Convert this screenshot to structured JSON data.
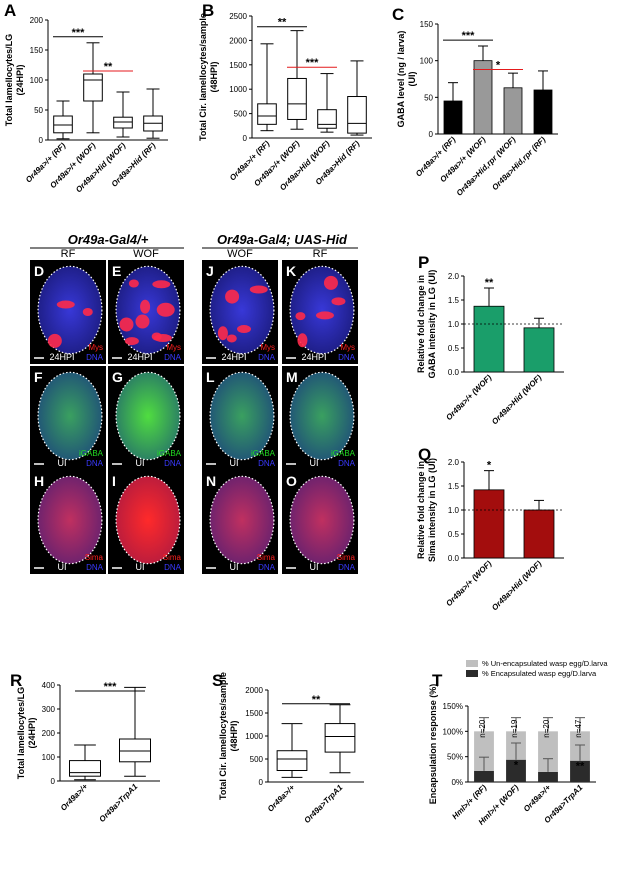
{
  "chart_data": [
    {
      "id": "A",
      "panel_label": "A",
      "type": "box",
      "ylabel": [
        "Total lamellocytes/LG",
        "(24HPI)"
      ],
      "ylim": [
        0,
        200
      ],
      "yticks": [
        0,
        50,
        100,
        150,
        200
      ],
      "categories": [
        "Or49a>/+ (RF)",
        "Or49a>/+ (WOF)",
        "Or49a>Hid (WOF)",
        "Or49a>Hid (RF)"
      ],
      "boxes": [
        {
          "min": 2,
          "q1": 12,
          "median": 25,
          "q3": 40,
          "max": 65
        },
        {
          "min": 12,
          "q1": 65,
          "median": 100,
          "q3": 110,
          "max": 162
        },
        {
          "min": 5,
          "q1": 20,
          "median": 30,
          "q3": 38,
          "max": 80
        },
        {
          "min": 3,
          "q1": 15,
          "median": 28,
          "q3": 40,
          "max": 85
        }
      ],
      "significance": [
        {
          "from": 0,
          "to": 1,
          "label": "***",
          "y": 172,
          "color": "#000000"
        },
        {
          "from": 1,
          "to": 2,
          "label": "**",
          "y": 115,
          "color": "#e41a1c"
        }
      ]
    },
    {
      "id": "B",
      "panel_label": "B",
      "type": "box",
      "ylabel": [
        "Total Cir. lamellocytes/sample",
        "(48HPI)"
      ],
      "ylim": [
        0,
        2500
      ],
      "yticks": [
        0,
        500,
        1000,
        1500,
        2000,
        2500
      ],
      "categories": [
        "Or49a>/+ (RF)",
        "Or49a>/+ (WOF)",
        "Or49a>Hid (WOF)",
        "Or49a>Hid (RF)"
      ],
      "boxes": [
        {
          "min": 150,
          "q1": 280,
          "median": 450,
          "q3": 700,
          "max": 1930
        },
        {
          "min": 180,
          "q1": 380,
          "median": 700,
          "q3": 1220,
          "max": 2200
        },
        {
          "min": 120,
          "q1": 200,
          "median": 280,
          "q3": 580,
          "max": 1320
        },
        {
          "min": 60,
          "q1": 100,
          "median": 300,
          "q3": 850,
          "max": 1580
        }
      ],
      "significance": [
        {
          "from": 0,
          "to": 1,
          "label": "**",
          "y": 2280,
          "color": "#000000"
        },
        {
          "from": 1,
          "to": 2,
          "label": "***",
          "y": 1450,
          "color": "#e41a1c"
        }
      ]
    },
    {
      "id": "C",
      "panel_label": "C",
      "type": "bar",
      "ylabel": [
        "GABA level (ng / larva)",
        "(UI)"
      ],
      "ylim": [
        0,
        150
      ],
      "yticks": [
        0,
        50,
        100,
        150
      ],
      "categories": [
        "Or49a>/+ (RF)",
        "Or49a>/+ (WOF)",
        "Or49a>Hid,rpr (WOF)",
        "Or49a>Hid,rpr (RF)"
      ],
      "values": [
        45,
        100,
        63,
        60
      ],
      "errors": [
        25,
        20,
        20,
        26
      ],
      "colors": [
        "#000000",
        "#999999",
        "#999999",
        "#000000"
      ],
      "significance": [
        {
          "from": 0,
          "to": 1,
          "label": "***",
          "y": 128,
          "color": "#000000"
        },
        {
          "from": 1,
          "to": 2,
          "label": "*",
          "y": 88,
          "color": "#e41a1c"
        }
      ]
    },
    {
      "id": "P",
      "panel_label": "P",
      "type": "bar",
      "ylabel": [
        "Relative fold change in",
        "GABA intensity in LG (UI)"
      ],
      "ylim": [
        0,
        2.0
      ],
      "yticks": [
        "0.0",
        "0.5",
        "1.0",
        "1.5",
        "2.0"
      ],
      "reference_line": 1.0,
      "categories": [
        "Or49a>/+ (WOF)",
        "Or49a>Hid (WOF)"
      ],
      "values": [
        1.37,
        0.92
      ],
      "errors": [
        0.38,
        0.2
      ],
      "colors": [
        "#1a9e6a",
        "#1a9e6a"
      ],
      "bar_labels": [
        "**",
        ""
      ]
    },
    {
      "id": "Q",
      "panel_label": "Q",
      "type": "bar",
      "ylabel": [
        "Relative fold change in",
        "Sima intensity in LG (UI)"
      ],
      "ylim": [
        0,
        2.0
      ],
      "yticks": [
        "0.0",
        "0.5",
        "1.0",
        "1.5",
        "2.0"
      ],
      "reference_line": 1.0,
      "categories": [
        "Or49a>/+ (WOF)",
        "Or49a>Hid (WOF)"
      ],
      "values": [
        1.42,
        1.0
      ],
      "errors": [
        0.4,
        0.2
      ],
      "colors": [
        "#a30d0d",
        "#a30d0d"
      ],
      "bar_labels": [
        "*",
        ""
      ]
    },
    {
      "id": "R",
      "panel_label": "R",
      "type": "box",
      "ylabel": [
        "Total lamellocytes/LG",
        "(24HPI)"
      ],
      "ylim": [
        0,
        400
      ],
      "yticks": [
        0,
        100,
        200,
        300,
        400
      ],
      "categories": [
        "Or49a>/+",
        "Or49a>TrpA1"
      ],
      "boxes": [
        {
          "min": 5,
          "q1": 20,
          "median": 35,
          "q3": 85,
          "max": 150
        },
        {
          "min": 20,
          "q1": 80,
          "median": 125,
          "q3": 175,
          "max": 390
        }
      ],
      "significance": [
        {
          "from": 0,
          "to": 1,
          "label": "***",
          "y": 375,
          "color": "#000000"
        }
      ]
    },
    {
      "id": "S",
      "panel_label": "S",
      "type": "box",
      "ylabel": [
        "Total Cir. lamellocytes/sample",
        "(48HPI)"
      ],
      "ylim": [
        0,
        2000
      ],
      "yticks": [
        0,
        500,
        1000,
        1500,
        2000
      ],
      "categories": [
        "Or49a>/+",
        "Or49a>TrpA1"
      ],
      "boxes": [
        {
          "min": 100,
          "q1": 250,
          "median": 500,
          "q3": 680,
          "max": 1270
        },
        {
          "min": 200,
          "q1": 650,
          "median": 990,
          "q3": 1270,
          "max": 1680
        }
      ],
      "significance": [
        {
          "from": 0,
          "to": 1,
          "label": "**",
          "y": 1700,
          "color": "#000000"
        }
      ]
    },
    {
      "id": "T",
      "panel_label": "T",
      "type": "stacked-bar",
      "ylabel": [
        "Encapsulation response (%)"
      ],
      "ylim": [
        0,
        150
      ],
      "yticks": [
        "0%",
        "50%",
        "100%",
        "150%"
      ],
      "legend": [
        "% Un-encapsulated wasp egg/D.larva",
        "% Encapsulated wasp egg/D.larva"
      ],
      "categories": [
        "Hml>/+ (RF)",
        "Hml>/+ (WOF)",
        "Or49a>/+",
        "Or49a>TrpA1"
      ],
      "series": [
        {
          "name": "% Encapsulated wasp egg/D.larva",
          "values": [
            22,
            44,
            20,
            42
          ],
          "color": "#2b2b2b"
        },
        {
          "name": "% Un-encapsulated wasp egg/D.larva",
          "values": [
            78,
            56,
            80,
            58
          ],
          "color": "#bfbfbf"
        }
      ],
      "errors": [
        27,
        33,
        26,
        31
      ],
      "n_labels": [
        "n=20",
        "n=19",
        "n=20",
        "n=47"
      ],
      "bar_labels": [
        "",
        "*",
        "",
        "**"
      ]
    }
  ],
  "micrographs": {
    "group_left": "Or49a-Gal4/+",
    "group_right": "Or49a-Gal4; UAS-Hid",
    "columns": [
      "RF",
      "WOF",
      "WOF",
      "RF"
    ],
    "rows": [
      {
        "panels": [
          "D",
          "E",
          "J",
          "K"
        ],
        "stain": "Mys",
        "stain_color": "#ff2020",
        "dna": "DNA",
        "footer": "24HPI"
      },
      {
        "panels": [
          "F",
          "G",
          "L",
          "M"
        ],
        "stain": "iGABA",
        "stain_color": "#22dd22",
        "dna": "DNA",
        "footer": "UI"
      },
      {
        "panels": [
          "H",
          "I",
          "N",
          "O"
        ],
        "stain": "Sima",
        "stain_color": "#ff2020",
        "dna": "DNA",
        "footer": "UI"
      }
    ]
  },
  "colors": {
    "dna": "#3a3aff",
    "red_sig": "#e41a1c"
  }
}
